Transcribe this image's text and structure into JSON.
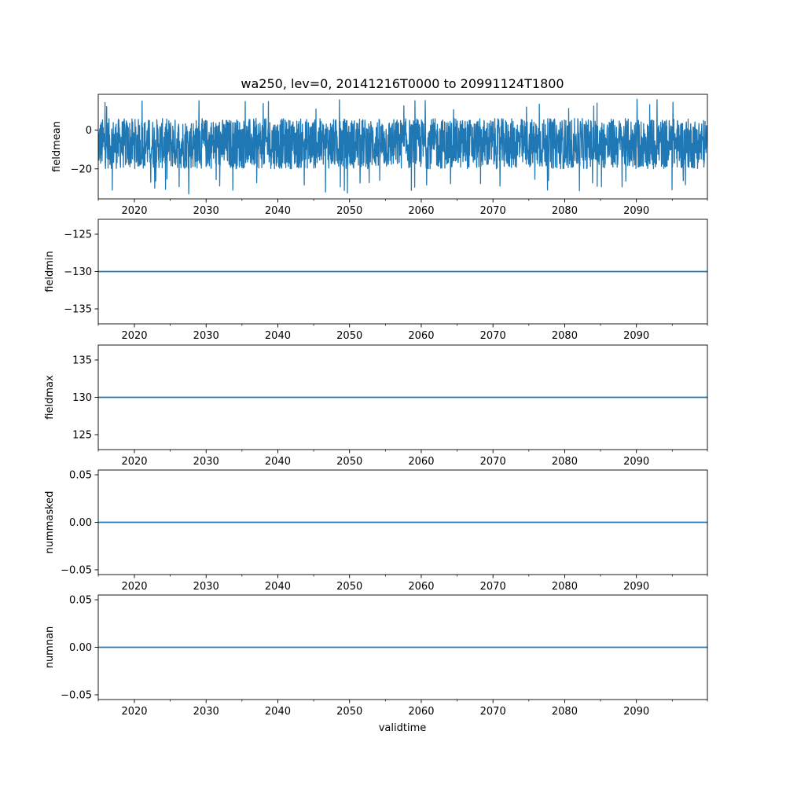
{
  "chart_data": {
    "type": "line",
    "title": "wa250, lev=0, 20141216T0000 to 20991124T1800",
    "xlabel": "validtime",
    "x_start": "2014-12-16T00:00",
    "x_end": "2099-11-24T18:00",
    "xlim": [
      2014.96,
      2099.9
    ],
    "xticks": [
      "2020",
      "2030",
      "2040",
      "2050",
      "2060",
      "2070",
      "2080",
      "2090"
    ],
    "line_color": "#1f77b4",
    "grid": false,
    "panels": [
      {
        "ylabel": "fieldmean",
        "ylim": [
          -35.5,
          18.5
        ],
        "yticks": [
          0,
          -20
        ],
        "ytick_labels": [
          "0",
          "−20"
        ],
        "series": [
          {
            "kind": "noisy",
            "center": -7,
            "typical_low": -20,
            "typical_high": 6,
            "min": -33,
            "max": 16
          }
        ]
      },
      {
        "ylabel": "fieldmin",
        "ylim": [
          -137,
          -123
        ],
        "yticks": [
          -125,
          -130,
          -135
        ],
        "ytick_labels": [
          "−125",
          "−130",
          "−135"
        ],
        "series": [
          {
            "kind": "constant",
            "value": -130
          }
        ]
      },
      {
        "ylabel": "fieldmax",
        "ylim": [
          123,
          137
        ],
        "yticks": [
          135,
          130,
          125
        ],
        "ytick_labels": [
          "135",
          "130",
          "125"
        ],
        "series": [
          {
            "kind": "constant",
            "value": 130
          }
        ]
      },
      {
        "ylabel": "nummasked",
        "ylim": [
          -0.055,
          0.055
        ],
        "yticks": [
          0.05,
          0.0,
          -0.05
        ],
        "ytick_labels": [
          "0.05",
          "0.00",
          "−0.05"
        ],
        "series": [
          {
            "kind": "constant",
            "value": 0
          }
        ]
      },
      {
        "ylabel": "numnan",
        "ylim": [
          -0.055,
          0.055
        ],
        "yticks": [
          0.05,
          0.0,
          -0.05
        ],
        "ytick_labels": [
          "0.05",
          "0.00",
          "−0.05"
        ],
        "series": [
          {
            "kind": "constant",
            "value": 0
          }
        ]
      }
    ]
  }
}
